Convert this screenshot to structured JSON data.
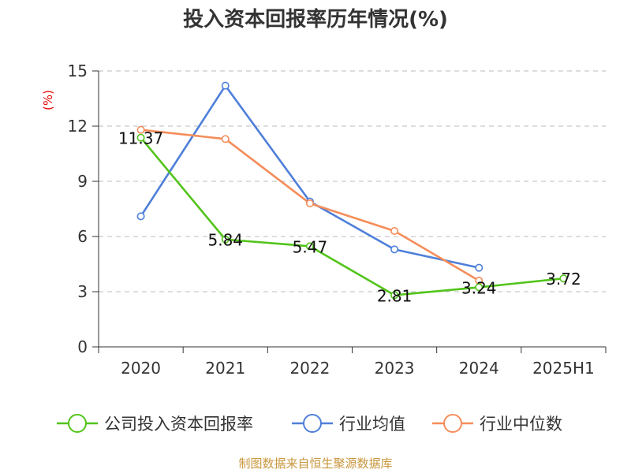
{
  "chart_data": {
    "type": "line",
    "title": "投入资本回报率历年情况(%)",
    "ylabel": "(%)",
    "categories": [
      "2020",
      "2021",
      "2022",
      "2023",
      "2024",
      "2025H1"
    ],
    "ylim": [
      0,
      15
    ],
    "yticks": [
      0,
      3,
      6,
      9,
      12,
      15
    ],
    "grid": "horizontal-dashed",
    "legend_position": "bottom",
    "series": [
      {
        "name": "公司投入资本回报率",
        "color": "#52c41a",
        "values": [
          11.37,
          5.84,
          5.47,
          2.81,
          3.24,
          3.72
        ],
        "labels": [
          "11.37",
          "5.84",
          "5.47",
          "2.81",
          "3.24",
          "3.72"
        ]
      },
      {
        "name": "行业均值",
        "color": "#4e7fd9",
        "values": [
          7.1,
          14.2,
          7.9,
          5.3,
          4.3,
          null
        ]
      },
      {
        "name": "行业中位数",
        "color": "#f58d5b",
        "values": [
          11.8,
          11.3,
          7.8,
          6.3,
          3.6,
          null
        ]
      }
    ],
    "source": "制图数据来自恒生聚源数据库"
  }
}
